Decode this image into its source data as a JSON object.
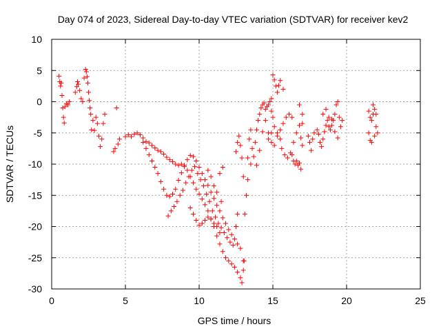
{
  "chart_data": {
    "type": "scatter",
    "title": "Day 074 of 2023, Sidereal Day-to-day VTEC variation (SDTVAR) for receiver kev2",
    "xlabel": "GPS time / hours",
    "ylabel": "SDTVAR / TECUs",
    "xlim": [
      0,
      25
    ],
    "ylim": [
      -30,
      10
    ],
    "xticks": [
      0,
      5,
      10,
      15,
      20,
      25
    ],
    "yticks": [
      -30,
      -25,
      -20,
      -15,
      -10,
      -5,
      0,
      5,
      10
    ],
    "grid": true,
    "marker": "+",
    "color": "#ff0000",
    "series": [
      {
        "name": "SDTVAR",
        "points": [
          [
            0.5,
            4.1
          ],
          [
            0.55,
            3.2
          ],
          [
            0.6,
            2.5
          ],
          [
            0.65,
            3.0
          ],
          [
            0.7,
            1.0
          ],
          [
            0.75,
            -1.0
          ],
          [
            0.8,
            -2.5
          ],
          [
            0.85,
            -3.4
          ],
          [
            0.9,
            -0.8
          ],
          [
            1.0,
            -0.3
          ],
          [
            1.1,
            -0.5
          ],
          [
            1.2,
            0.0
          ],
          [
            1.6,
            1.5
          ],
          [
            1.7,
            2.4
          ],
          [
            1.75,
            3.2
          ],
          [
            1.8,
            2.8
          ],
          [
            1.9,
            1.8
          ],
          [
            2.0,
            0.5
          ],
          [
            2.1,
            0.0
          ],
          [
            2.2,
            3.8
          ],
          [
            2.3,
            5.2
          ],
          [
            2.35,
            4.8
          ],
          [
            2.4,
            4.0
          ],
          [
            2.45,
            3.0
          ],
          [
            2.5,
            1.5
          ],
          [
            2.55,
            0.2
          ],
          [
            2.6,
            -1.0
          ],
          [
            2.65,
            -2.0
          ],
          [
            2.7,
            -4.5
          ],
          [
            2.8,
            -3.0
          ],
          [
            2.9,
            -4.6
          ],
          [
            3.0,
            -2.5
          ],
          [
            3.1,
            -3.5
          ],
          [
            3.2,
            -5.5
          ],
          [
            3.3,
            -7.2
          ],
          [
            3.4,
            -6.0
          ],
          [
            3.5,
            -3.5
          ],
          [
            3.6,
            -2.0
          ],
          [
            4.2,
            -8.0
          ],
          [
            4.3,
            -7.5
          ],
          [
            4.4,
            -1.0
          ],
          [
            4.5,
            -6.8
          ],
          [
            4.6,
            -6.0
          ],
          [
            5.0,
            -5.6
          ],
          [
            5.2,
            -5.3
          ],
          [
            5.4,
            -5.6
          ],
          [
            5.6,
            -5.2
          ],
          [
            5.8,
            -5.0
          ],
          [
            6.0,
            -5.3
          ],
          [
            6.2,
            -5.8
          ],
          [
            6.4,
            -6.4
          ],
          [
            6.6,
            -6.6
          ],
          [
            6.8,
            -7.0
          ],
          [
            7.0,
            -7.4
          ],
          [
            7.2,
            -7.8
          ],
          [
            7.4,
            -8.0
          ],
          [
            7.6,
            -8.4
          ],
          [
            7.8,
            -8.9
          ],
          [
            8.0,
            -9.3
          ],
          [
            8.2,
            -9.6
          ],
          [
            8.4,
            -10.0
          ],
          [
            8.6,
            -10.2
          ],
          [
            8.8,
            -10.0
          ],
          [
            9.0,
            -10.4
          ],
          [
            9.2,
            -11.0
          ],
          [
            9.4,
            -12.0
          ],
          [
            9.6,
            -13.0
          ],
          [
            9.8,
            -14.0
          ],
          [
            10.0,
            -14.8
          ],
          [
            10.2,
            -15.6
          ],
          [
            10.4,
            -16.5
          ],
          [
            10.6,
            -17.5
          ],
          [
            10.8,
            -18.8
          ],
          [
            11.0,
            -20.0
          ],
          [
            11.2,
            -21.5
          ],
          [
            11.4,
            -22.8
          ],
          [
            11.6,
            -24.0
          ],
          [
            11.8,
            -25.0
          ],
          [
            12.0,
            -25.5
          ],
          [
            12.2,
            -26.0
          ],
          [
            12.4,
            -26.5
          ],
          [
            12.6,
            -27.3
          ],
          [
            12.8,
            -28.2
          ],
          [
            12.9,
            -29.0
          ],
          [
            13.0,
            -27.0
          ],
          [
            13.05,
            -25.5
          ],
          [
            6.2,
            -6.5
          ],
          [
            6.4,
            -7.5
          ],
          [
            6.6,
            -8.5
          ],
          [
            6.8,
            -9.5
          ],
          [
            7.0,
            -10.5
          ],
          [
            7.2,
            -11.5
          ],
          [
            7.4,
            -12.8
          ],
          [
            7.6,
            -14.0
          ],
          [
            7.8,
            -15.0
          ],
          [
            8.0,
            -15.2
          ],
          [
            8.2,
            -14.8
          ],
          [
            8.4,
            -14.0
          ],
          [
            8.6,
            -12.6
          ],
          [
            8.8,
            -11.4
          ],
          [
            9.0,
            -10.2
          ],
          [
            9.2,
            -9.3
          ],
          [
            9.4,
            -8.6
          ],
          [
            9.6,
            -8.8
          ],
          [
            9.8,
            -9.5
          ],
          [
            10.0,
            -10.5
          ],
          [
            10.2,
            -11.5
          ],
          [
            10.4,
            -12.5
          ],
          [
            10.6,
            -13.4
          ],
          [
            10.8,
            -14.5
          ],
          [
            11.0,
            -15.5
          ],
          [
            11.2,
            -16.6
          ],
          [
            11.4,
            -17.5
          ],
          [
            11.6,
            -18.6
          ],
          [
            11.8,
            -19.5
          ],
          [
            12.0,
            -20.5
          ],
          [
            12.2,
            -21.3
          ],
          [
            12.4,
            -22.0
          ],
          [
            12.6,
            -22.8
          ],
          [
            12.8,
            -23.5
          ],
          [
            13.0,
            -25.5
          ],
          [
            7.9,
            -18.3
          ],
          [
            8.1,
            -17.5
          ],
          [
            8.3,
            -16.8
          ],
          [
            8.5,
            -16.0
          ],
          [
            8.7,
            -15.0
          ],
          [
            8.9,
            -14.2
          ],
          [
            9.1,
            -13.0
          ],
          [
            9.3,
            -12.0
          ],
          [
            9.5,
            -11.0
          ],
          [
            9.7,
            -10.4
          ],
          [
            9.9,
            -11.5
          ],
          [
            10.1,
            -12.5
          ],
          [
            10.3,
            -13.5
          ],
          [
            10.5,
            -14.8
          ],
          [
            10.7,
            -16.0
          ],
          [
            10.9,
            -17.5
          ],
          [
            11.1,
            -18.5
          ],
          [
            11.3,
            -19.5
          ],
          [
            11.5,
            -20.2
          ],
          [
            11.7,
            -21.0
          ],
          [
            11.9,
            -21.8
          ],
          [
            12.1,
            -22.5
          ],
          [
            12.3,
            -23.0
          ],
          [
            9.4,
            -17.0
          ],
          [
            9.6,
            -18.0
          ],
          [
            9.8,
            -19.0
          ],
          [
            10.0,
            -19.8
          ],
          [
            10.2,
            -19.5
          ],
          [
            10.4,
            -19.0
          ],
          [
            10.6,
            -18.5
          ],
          [
            10.8,
            -18.8
          ],
          [
            11.0,
            -19.5
          ],
          [
            11.2,
            -20.0
          ],
          [
            11.4,
            -21.0
          ],
          [
            10.6,
            -11.0
          ],
          [
            10.8,
            -12.0
          ],
          [
            11.0,
            -13.5
          ],
          [
            11.2,
            -14.5
          ],
          [
            11.4,
            -11.5
          ],
          [
            11.6,
            -10.5
          ],
          [
            11.5,
            -16.0
          ],
          [
            12.5,
            -20.0
          ],
          [
            12.6,
            -18.0
          ],
          [
            12.5,
            -8.0
          ],
          [
            12.6,
            -6.5
          ],
          [
            12.7,
            -5.5
          ],
          [
            12.8,
            -7.0
          ],
          [
            12.9,
            -9.0
          ],
          [
            13.0,
            -12.0
          ],
          [
            13.1,
            -18.0
          ],
          [
            13.2,
            -15.0
          ],
          [
            13.3,
            -9.0
          ],
          [
            13.4,
            -6.0
          ],
          [
            13.5,
            -4.5
          ],
          [
            13.3,
            -12.5
          ],
          [
            13.5,
            -10.0
          ],
          [
            13.6,
            -7.5
          ],
          [
            13.7,
            -8.8
          ],
          [
            13.8,
            -6.5
          ],
          [
            13.9,
            -4.5
          ],
          [
            14.0,
            -3.0
          ],
          [
            14.1,
            -2.0
          ],
          [
            14.2,
            -1.0
          ],
          [
            14.3,
            -0.5
          ],
          [
            14.4,
            -0.2
          ],
          [
            14.5,
            -1.2
          ],
          [
            14.6,
            -0.8
          ],
          [
            14.7,
            -0.5
          ],
          [
            14.8,
            0.0
          ],
          [
            14.9,
            -1.5
          ],
          [
            15.0,
            -2.5
          ],
          [
            13.9,
            -10.2
          ],
          [
            14.1,
            -7.8
          ],
          [
            14.3,
            -4.8
          ],
          [
            14.5,
            -3.0
          ],
          [
            14.7,
            -5.0
          ],
          [
            14.9,
            -6.5
          ],
          [
            15.1,
            -7.0
          ],
          [
            15.3,
            -5.5
          ],
          [
            15.5,
            -4.5
          ],
          [
            15.7,
            -3.5
          ],
          [
            15.9,
            -2.5
          ],
          [
            16.1,
            -2.0
          ],
          [
            16.3,
            -2.5
          ],
          [
            14.7,
            -6.0
          ],
          [
            14.9,
            -5.0
          ],
          [
            15.1,
            -4.0
          ],
          [
            15.3,
            -5.0
          ],
          [
            15.5,
            -6.0
          ],
          [
            15.6,
            -7.5
          ],
          [
            15.8,
            -8.5
          ],
          [
            16.0,
            -9.0
          ],
          [
            16.2,
            -8.2
          ],
          [
            16.4,
            -6.5
          ],
          [
            16.6,
            -5.0
          ],
          [
            16.8,
            -3.8
          ],
          [
            17.0,
            -3.5
          ],
          [
            15.0,
            4.3
          ],
          [
            15.1,
            3.5
          ],
          [
            15.2,
            2.5
          ],
          [
            15.3,
            1.5
          ],
          [
            15.4,
            2.6
          ],
          [
            15.5,
            3.4
          ],
          [
            15.7,
            2.0
          ],
          [
            14.9,
            0.5
          ],
          [
            16.3,
            -8.5
          ],
          [
            16.4,
            -9.5
          ],
          [
            16.5,
            -10.0
          ],
          [
            16.6,
            -9.5
          ],
          [
            16.7,
            -10.2
          ],
          [
            16.8,
            -9.8
          ],
          [
            16.9,
            -10.8
          ],
          [
            17.0,
            -7.0
          ],
          [
            16.9,
            -5.8
          ],
          [
            17.0,
            -2.0
          ],
          [
            16.8,
            -0.5
          ],
          [
            17.4,
            -5.5
          ],
          [
            17.5,
            -6.5
          ],
          [
            17.6,
            -7.8
          ],
          [
            17.7,
            -6.0
          ],
          [
            17.8,
            -5.0
          ],
          [
            18.0,
            -4.5
          ],
          [
            18.1,
            -5.2
          ],
          [
            18.2,
            -6.5
          ],
          [
            18.3,
            -7.2
          ],
          [
            18.4,
            -6.0
          ],
          [
            18.5,
            -4.8
          ],
          [
            18.6,
            -3.8
          ],
          [
            18.7,
            -3.0
          ],
          [
            18.8,
            -4.0
          ],
          [
            18.9,
            -4.5
          ],
          [
            19.0,
            -3.8
          ],
          [
            19.1,
            -3.0
          ],
          [
            19.2,
            -2.0
          ],
          [
            19.3,
            -0.5
          ],
          [
            19.4,
            0.0
          ],
          [
            19.5,
            -2.5
          ],
          [
            19.6,
            -4.0
          ],
          [
            19.7,
            -3.0
          ],
          [
            18.4,
            -2.0
          ],
          [
            18.6,
            -1.2
          ],
          [
            18.8,
            -2.5
          ],
          [
            19.0,
            -2.8
          ],
          [
            19.2,
            -4.8
          ],
          [
            19.4,
            -5.8
          ],
          [
            21.5,
            -1.5
          ],
          [
            21.6,
            -2.5
          ],
          [
            21.7,
            -3.0
          ],
          [
            21.8,
            -2.0
          ],
          [
            21.9,
            -1.2
          ],
          [
            22.0,
            -2.0
          ],
          [
            21.5,
            -5.0
          ],
          [
            21.6,
            -6.2
          ],
          [
            21.7,
            -6.5
          ],
          [
            21.9,
            -5.5
          ],
          [
            22.0,
            -4.0
          ],
          [
            22.1,
            -5.0
          ],
          [
            21.8,
            -0.5
          ]
        ]
      }
    ]
  }
}
